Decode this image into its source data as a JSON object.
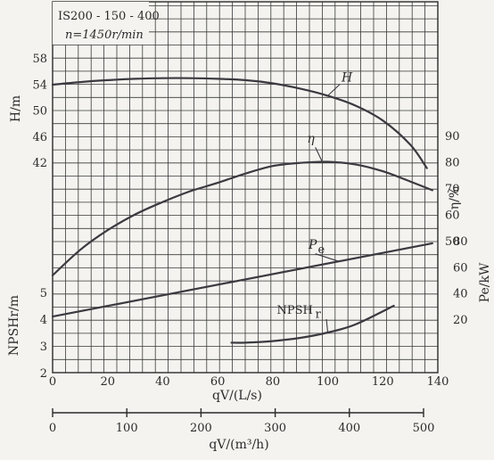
{
  "chart_data": {
    "type": "line",
    "info_box": {
      "model": "IS200 - 150 - 400",
      "speed": "n=1450r/min"
    },
    "x_axis": {
      "label": "qV/(L/s)",
      "range": [
        0,
        140
      ],
      "ticks": [
        0,
        20,
        40,
        60,
        80,
        100,
        120,
        140
      ]
    },
    "x_axis_secondary": {
      "label": "qV/(m³/h)",
      "range": [
        0,
        504
      ],
      "ticks": [
        0,
        100,
        200,
        300,
        400,
        500
      ]
    },
    "y_axes": {
      "H": {
        "label": "H/m",
        "range": [
          38.5,
          60
        ],
        "ticks": [
          42,
          46,
          50,
          54,
          58
        ]
      },
      "eta": {
        "label": "η/%",
        "range": [
          35,
          100
        ],
        "ticks": [
          50,
          60,
          70,
          80,
          90
        ]
      },
      "Pe": {
        "label": "Pe/kW",
        "range": [
          0,
          100
        ],
        "ticks": [
          20,
          40,
          60,
          80
        ]
      },
      "NPSHr": {
        "label": "NPSHr/m",
        "range": [
          2,
          8
        ],
        "ticks": [
          2,
          3,
          4,
          5
        ]
      }
    },
    "series": [
      {
        "name": "H",
        "axis": "H",
        "x": [
          0,
          10,
          20,
          30,
          40,
          50,
          60,
          70,
          80,
          90,
          100,
          110,
          120,
          130,
          136
        ],
        "y": [
          53.9,
          54.3,
          54.6,
          54.8,
          54.9,
          54.9,
          54.8,
          54.6,
          54.1,
          53.3,
          52.2,
          50.7,
          48.4,
          44.7,
          41.1
        ]
      },
      {
        "name": "η",
        "axis": "eta",
        "x": [
          0,
          10,
          20,
          30,
          40,
          50,
          60,
          70,
          80,
          90,
          100,
          110,
          120,
          130,
          138
        ],
        "y": [
          36.8,
          46.5,
          54,
          60,
          64.7,
          68.8,
          72,
          75.5,
          78.4,
          79.6,
          80,
          79,
          76.4,
          72.5,
          69.2
        ]
      },
      {
        "name": "Pe",
        "axis": "Pe",
        "x": [
          0,
          138
        ],
        "y": [
          22,
          78
        ]
      },
      {
        "name": "NPSHr",
        "axis": "NPSHr",
        "x": [
          65,
          70,
          80,
          90,
          100,
          110,
          124
        ],
        "y": [
          3.12,
          3.12,
          3.18,
          3.3,
          3.5,
          3.8,
          4.5
        ]
      }
    ],
    "curve_labels": {
      "H": "H",
      "eta": "η",
      "Pe": "Pe",
      "NPSHr": "NPSHr"
    },
    "grid": true
  }
}
